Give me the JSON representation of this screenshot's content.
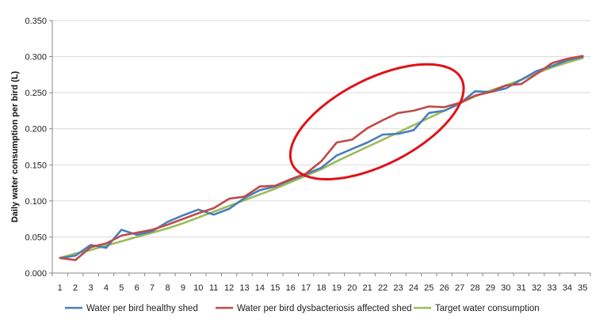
{
  "chart_data": {
    "type": "line",
    "ylabel": "Daily water consumption per bird (L)",
    "xlabel": "",
    "x": [
      1,
      2,
      3,
      4,
      5,
      6,
      7,
      8,
      9,
      10,
      11,
      12,
      13,
      14,
      15,
      16,
      17,
      18,
      19,
      20,
      21,
      22,
      23,
      24,
      25,
      26,
      27,
      28,
      29,
      30,
      31,
      32,
      33,
      34,
      35
    ],
    "x_tick_labels": [
      "1",
      "2",
      "3",
      "4",
      "5",
      "6",
      "7",
      "8",
      "9",
      "10",
      "11",
      "12",
      "13",
      "14",
      "15",
      "16",
      "17",
      "18",
      "19",
      "20",
      "21",
      "22",
      "23",
      "24",
      "25",
      "26",
      "27",
      "28",
      "29",
      "30",
      "31",
      "32",
      "33",
      "34",
      "35"
    ],
    "ylim": [
      0,
      0.35
    ],
    "y_tick_labels": [
      "0.000",
      "0.050",
      "0.100",
      "0.150",
      "0.200",
      "0.250",
      "0.300",
      "0.350"
    ],
    "grid": true,
    "legend_position": "bottom",
    "series": [
      {
        "name": "Water per bird healthy shed",
        "color": "#4a7ebb",
        "values": [
          0.021,
          0.024,
          0.039,
          0.035,
          0.06,
          0.053,
          0.058,
          0.071,
          0.08,
          0.088,
          0.081,
          0.089,
          0.104,
          0.115,
          0.12,
          0.129,
          0.137,
          0.146,
          0.163,
          0.172,
          0.181,
          0.192,
          0.193,
          0.198,
          0.222,
          0.225,
          0.235,
          0.252,
          0.251,
          0.256,
          0.268,
          0.28,
          0.287,
          0.295,
          0.3
        ]
      },
      {
        "name": "Water per bird dysbacteriosis affected shed",
        "color": "#be4b48",
        "values": [
          0.021,
          0.018,
          0.036,
          0.041,
          0.052,
          0.056,
          0.06,
          0.067,
          0.075,
          0.083,
          0.09,
          0.103,
          0.106,
          0.12,
          0.121,
          0.13,
          0.138,
          0.155,
          0.181,
          0.185,
          0.201,
          0.212,
          0.222,
          0.225,
          0.231,
          0.23,
          0.236,
          0.246,
          0.251,
          0.26,
          0.262,
          0.276,
          0.291,
          0.297,
          0.301
        ]
      },
      {
        "name": "Target water consumption",
        "color": "#9bbb59",
        "values": [
          0.021,
          0.027,
          0.032,
          0.038,
          0.044,
          0.05,
          0.056,
          0.062,
          0.069,
          0.077,
          0.085,
          0.093,
          0.101,
          0.109,
          0.117,
          0.126,
          0.135,
          0.144,
          0.155,
          0.165,
          0.175,
          0.185,
          0.195,
          0.205,
          0.215,
          0.225,
          0.235,
          0.245,
          0.253,
          0.26,
          0.268,
          0.277,
          0.285,
          0.292,
          0.298
        ]
      }
    ],
    "annotation": {
      "shape": "ellipse",
      "color": "#e0121a",
      "x_range": [
        17,
        25
      ],
      "y_range": [
        0.135,
        0.28
      ]
    }
  }
}
